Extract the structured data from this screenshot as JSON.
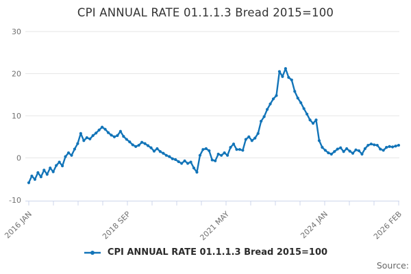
{
  "title": "CPI ANNUAL RATE 01.1.1.3 Bread 2015=100",
  "legend": {
    "label": "CPI ANNUAL RATE 01.1.1.3 Bread 2015=100"
  },
  "source_label": "Source:",
  "colors": {
    "line": "#1274b8",
    "grid": "#e6e6e6",
    "axis": "#ccd6eb",
    "axis_label": "#6f6f6f",
    "title_text": "#333333",
    "legend_text": "#2b2b2b",
    "source_text": "#666666"
  },
  "chart_data": {
    "type": "line",
    "title": "CPI ANNUAL RATE 01.1.1.3 Bread 2015=100",
    "x_first": "2016 JAN",
    "x_last": "2026 FEB",
    "x_freq": "monthly",
    "n_points": 122,
    "x_tick_count": 16,
    "x_label_tick_indices": [
      0,
      4,
      8,
      12,
      15
    ],
    "x_tick_labels": [
      "2016 JAN",
      "2018 SEP",
      "2021 MAY",
      "2024 JAN",
      "2026 FEB"
    ],
    "y_ticks": [
      30,
      20,
      10,
      0,
      -10
    ],
    "ylim": [
      -10,
      30
    ],
    "grid": "horizontal",
    "legend_position": "bottom",
    "series": [
      {
        "name": "CPI ANNUAL RATE 01.1.1.3 Bread 2015=100",
        "values": [
          -5.9,
          -4.3,
          -5.1,
          -3.5,
          -4.5,
          -2.9,
          -3.9,
          -2.4,
          -3.3,
          -1.8,
          -1.0,
          -1.9,
          0.3,
          1.2,
          0.6,
          2.1,
          3.4,
          5.8,
          4.1,
          4.8,
          4.5,
          5.3,
          5.9,
          6.6,
          7.3,
          6.8,
          6.0,
          5.4,
          5.0,
          5.3,
          6.3,
          5.1,
          4.4,
          3.8,
          3.1,
          2.7,
          3.0,
          3.7,
          3.4,
          2.9,
          2.4,
          1.6,
          2.2,
          1.5,
          1.1,
          0.6,
          0.3,
          -0.2,
          -0.4,
          -0.9,
          -1.3,
          -0.7,
          -1.3,
          -1.0,
          -2.4,
          -3.4,
          0.6,
          2.0,
          2.2,
          1.7,
          -0.5,
          -0.7,
          0.9,
          0.6,
          1.2,
          0.6,
          2.5,
          3.3,
          2.0,
          2.0,
          1.8,
          4.4,
          5.0,
          4.1,
          4.7,
          5.8,
          8.7,
          9.8,
          11.5,
          12.8,
          14.0,
          14.8,
          20.5,
          19.3,
          21.2,
          19.1,
          18.5,
          15.8,
          14.2,
          13.1,
          11.7,
          10.4,
          9.0,
          8.2,
          9.0,
          4.1,
          2.5,
          1.8,
          1.2,
          0.9,
          1.5,
          2.1,
          2.4,
          1.5,
          2.2,
          1.6,
          1.1,
          1.9,
          1.7,
          0.9,
          2.2,
          3.0,
          3.3,
          3.1,
          3.0,
          2.1,
          1.8,
          2.5,
          2.7,
          2.6,
          2.8,
          3.0
        ]
      }
    ]
  }
}
